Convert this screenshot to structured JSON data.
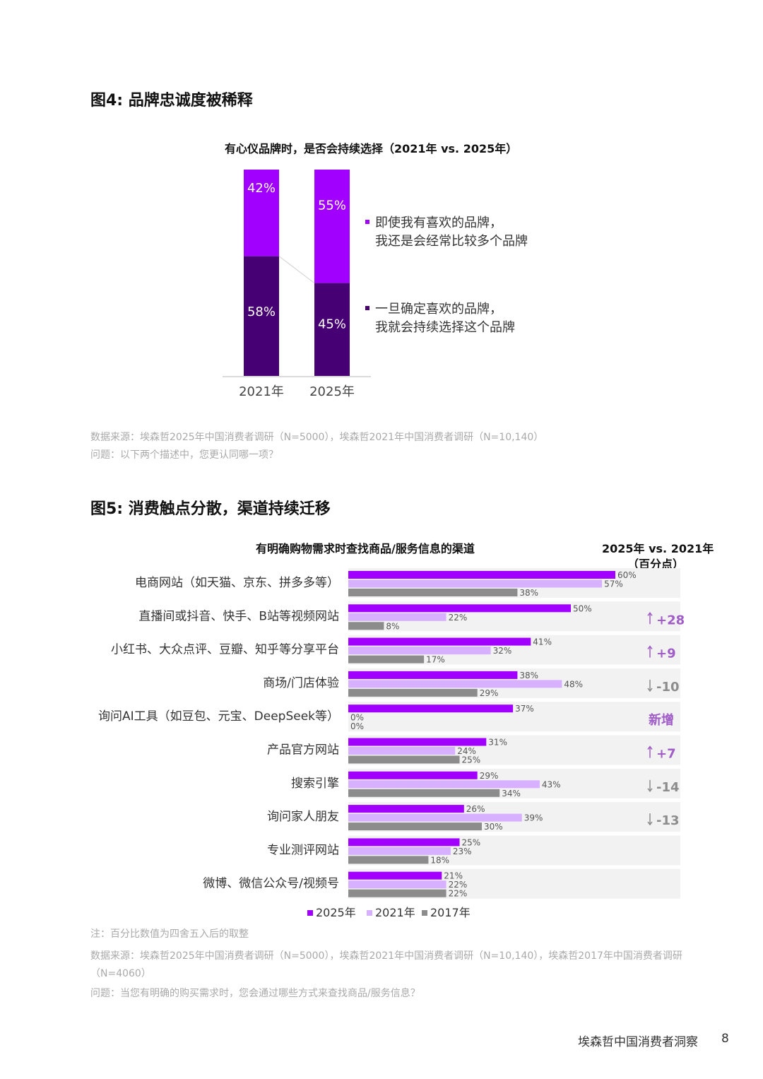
{
  "fig4": {
    "title": "图4: 品牌忠诚度被稀释",
    "subtitle": "有心仪品牌时，是否会持续选择（2021年 vs. 2025年）",
    "source": "数据来源：埃森哲2025年中国消费者调研（N=5000），埃森哲2021年中国消费者调研（N=10,140）",
    "question": "问题：以下两个描述中，您更认同哪一项？"
  },
  "fig5": {
    "title": "图5: 消费触点分散，渠道持续迁移",
    "subtitle": "有明确购物需求时查找商品/服务信息的渠道",
    "delta_header_line1": "2025年 vs. 2021年",
    "delta_header_line2": "（百分点）",
    "note": "注：百分比数值为四舍五入后的取整",
    "source": "数据来源：埃森哲2025年中国消费者调研（N=5000），埃森哲2021年中国消费者调研（N=10,140），埃森哲2017年中国消费者调研（N=4060）",
    "question": "问题：当您有明确的购买需求时，您会通过哪些方式来查找商品/服务信息？"
  },
  "footer": {
    "report": "埃森哲中国消费者洞察",
    "page": "8"
  },
  "colors": {
    "purple": "#a100ff",
    "dark_purple": "#460073",
    "light_purple": "#d7b0ff",
    "gray": "#8c8c8c",
    "delta_positive": "#a05cc7",
    "delta_negative": "#8c8c8c"
  },
  "chart_data": [
    {
      "type": "bar",
      "stacked": true,
      "categories": [
        "2021年",
        "2025年"
      ],
      "series": [
        {
          "name": "即使我有喜欢的品牌，我还是会经常比较多个品牌",
          "values": [
            42,
            55
          ],
          "labels": [
            "42%",
            "55%"
          ]
        },
        {
          "name": "一旦确定喜欢的品牌，我就会持续选择这个品牌",
          "values": [
            58,
            45
          ],
          "labels": [
            "58%",
            "45%"
          ]
        }
      ],
      "legend": [
        {
          "line1": "即使我有喜欢的品牌，",
          "line2": "我还是会经常比较多个品牌"
        },
        {
          "line1": "一旦确定喜欢的品牌，",
          "line2": "我就会持续选择这个品牌"
        }
      ],
      "ylim": [
        0,
        100
      ],
      "legend_position": "right"
    },
    {
      "type": "bar",
      "orientation": "horizontal",
      "categories": [
        "电商网站（如天猫、京东、拼多多等）",
        "直播间或抖音、快手、B站等视频网站",
        "小红书、大众点评、豆瓣、知乎等分享平台",
        "商场/门店体验",
        "询问AI工具（如豆包、元宝、DeepSeek等）",
        "产品官方网站",
        "搜索引擎",
        "询问家人朋友",
        "专业测评网站",
        "微博、微信公众号/视频号"
      ],
      "series": [
        {
          "name": "2025年",
          "values": [
            60,
            50,
            41,
            38,
            37,
            31,
            29,
            26,
            25,
            21
          ]
        },
        {
          "name": "2021年",
          "values": [
            57,
            22,
            32,
            48,
            0,
            24,
            43,
            39,
            23,
            22
          ]
        },
        {
          "name": "2017年",
          "values": [
            38,
            8,
            17,
            29,
            0,
            25,
            34,
            30,
            18,
            22
          ]
        }
      ],
      "deltas": [
        {
          "text": "",
          "dir": ""
        },
        {
          "text": "+28",
          "dir": "up"
        },
        {
          "text": "+9",
          "dir": "up"
        },
        {
          "text": "-10",
          "dir": "down"
        },
        {
          "text": "新增",
          "dir": "new"
        },
        {
          "text": "+7",
          "dir": "up"
        },
        {
          "text": "-14",
          "dir": "down"
        },
        {
          "text": "-13",
          "dir": "down"
        },
        {
          "text": "",
          "dir": ""
        },
        {
          "text": "",
          "dir": ""
        }
      ],
      "legend": [
        "2025年",
        "2021年",
        "2017年"
      ],
      "legend_position": "bottom",
      "xlim": [
        0,
        60
      ]
    }
  ]
}
